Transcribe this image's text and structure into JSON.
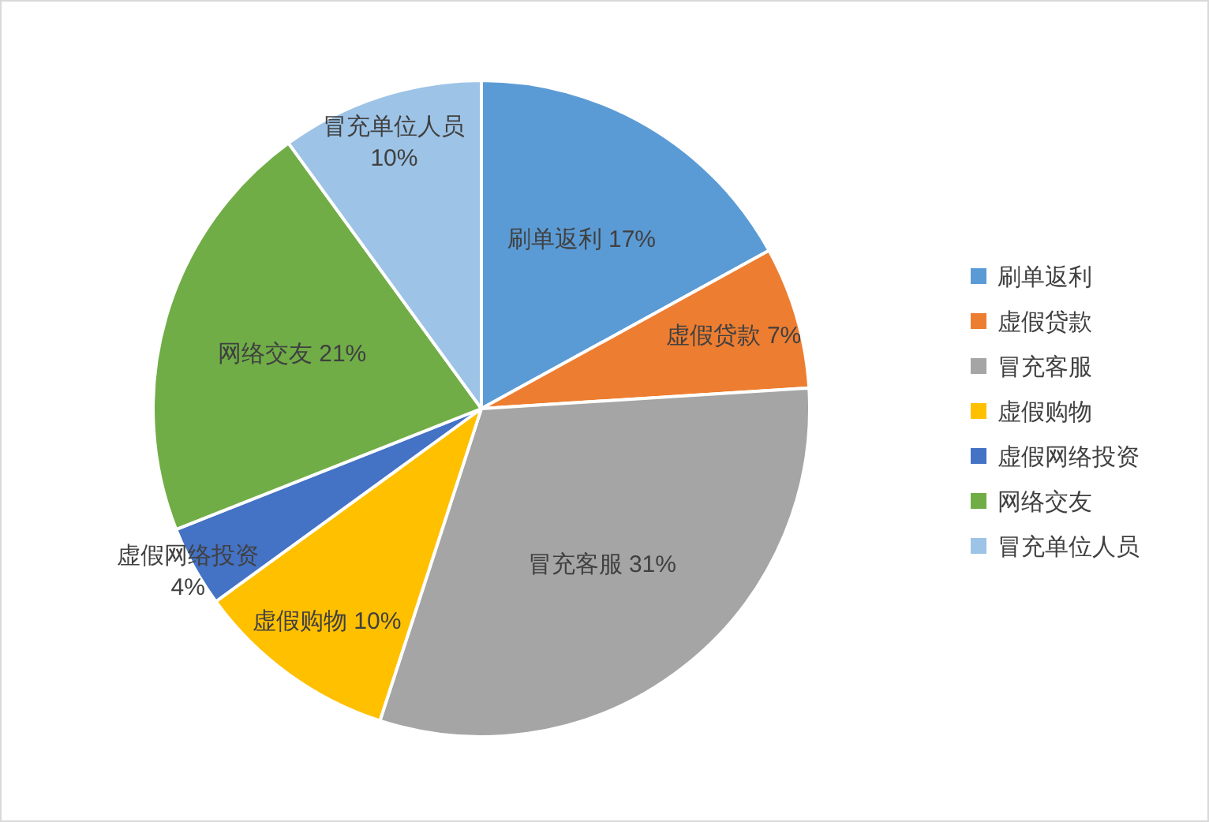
{
  "chart_data": {
    "type": "pie",
    "categories": [
      "刷单返利",
      "虚假贷款",
      "冒充客服",
      "虚假购物",
      "虚假网络投资",
      "网络交友",
      "冒充单位人员"
    ],
    "values": [
      17,
      7,
      31,
      10,
      4,
      21,
      10
    ],
    "colors": [
      "#5b9bd5",
      "#ed7d31",
      "#a5a5a5",
      "#ffc000",
      "#4472c4",
      "#70ad47",
      "#9dc3e6"
    ],
    "value_labels": [
      "17%",
      "7%",
      "31%",
      "10%",
      "4%",
      "21%",
      "10%"
    ],
    "legend": "right"
  }
}
